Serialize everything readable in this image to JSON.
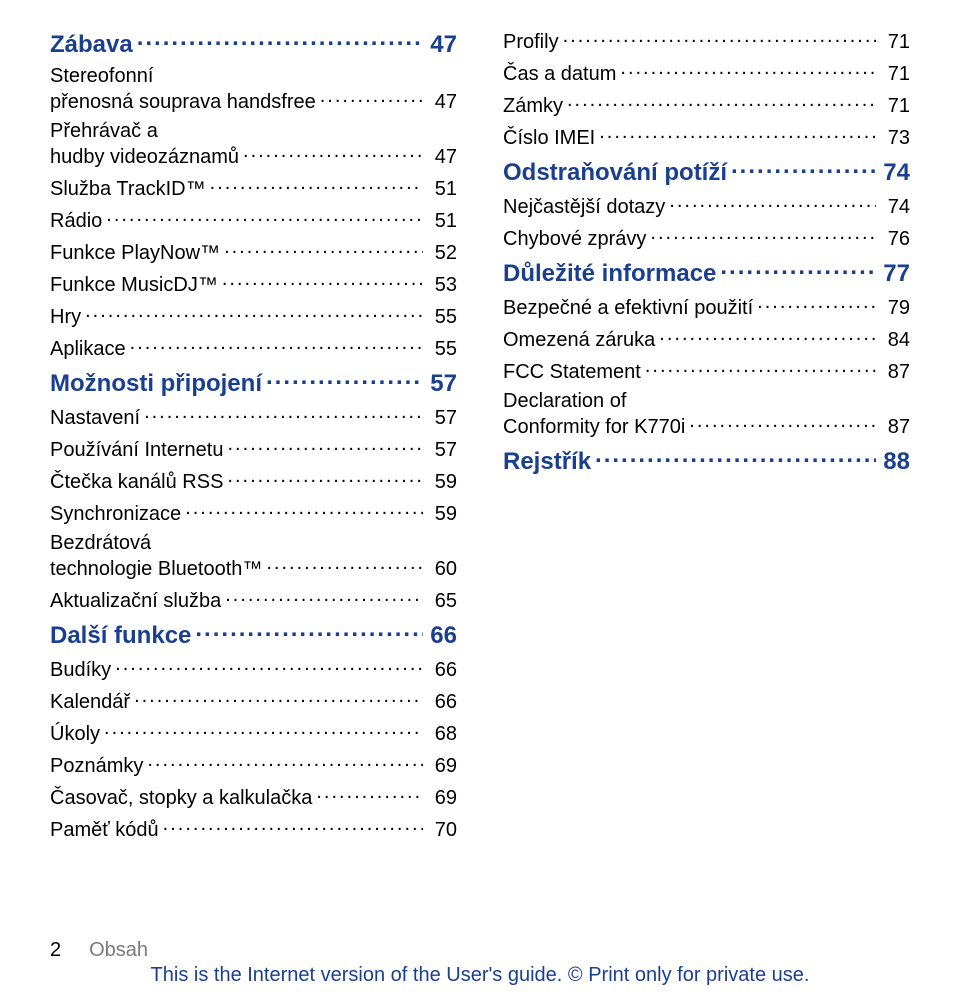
{
  "colors": {
    "heading": "#1b3f8f",
    "entry": "#000000",
    "footer_gray": "#7a7a7a",
    "footer_blue": "#1b3f8f"
  },
  "left": [
    {
      "type": "heading",
      "label": "Zábava",
      "page": "47"
    },
    {
      "type": "entry",
      "label": "Stereofonní přenosná souprava handsfree",
      "page": "47",
      "wrap": true
    },
    {
      "type": "entry",
      "label": "Přehrávač hudby a videozáznamů",
      "page": "47",
      "wrap": true
    },
    {
      "type": "entry",
      "label": "Služba TrackID™",
      "page": "51"
    },
    {
      "type": "entry",
      "label": "Rádio",
      "page": "51"
    },
    {
      "type": "entry",
      "label": "Funkce PlayNow™",
      "page": "52"
    },
    {
      "type": "entry",
      "label": "Funkce MusicDJ™",
      "page": "53"
    },
    {
      "type": "entry",
      "label": "Hry",
      "page": "55"
    },
    {
      "type": "entry",
      "label": "Aplikace",
      "page": "55"
    },
    {
      "type": "heading",
      "label": "Možnosti připojení",
      "page": "57"
    },
    {
      "type": "entry",
      "label": "Nastavení",
      "page": "57"
    },
    {
      "type": "entry",
      "label": "Používání Internetu",
      "page": "57"
    },
    {
      "type": "entry",
      "label": "Čtečka kanálů RSS",
      "page": "59"
    },
    {
      "type": "entry",
      "label": "Synchronizace",
      "page": "59"
    },
    {
      "type": "entry",
      "label": "Bezdrátová technologie Bluetooth™",
      "page": "60",
      "wrap": true
    },
    {
      "type": "entry",
      "label": "Aktualizační služba",
      "page": "65"
    },
    {
      "type": "heading",
      "label": "Další funkce",
      "page": "66"
    },
    {
      "type": "entry",
      "label": "Budíky",
      "page": "66"
    },
    {
      "type": "entry",
      "label": "Kalendář",
      "page": "66"
    },
    {
      "type": "entry",
      "label": "Úkoly",
      "page": "68"
    },
    {
      "type": "entry",
      "label": "Poznámky",
      "page": "69"
    },
    {
      "type": "entry",
      "label": "Časovač, stopky a kalkulačka",
      "page": "69"
    },
    {
      "type": "entry",
      "label": "Paměť kódů",
      "page": "70"
    }
  ],
  "right": [
    {
      "type": "entry",
      "label": "Profily",
      "page": "71"
    },
    {
      "type": "entry",
      "label": "Čas a datum",
      "page": "71"
    },
    {
      "type": "entry",
      "label": "Zámky",
      "page": "71"
    },
    {
      "type": "entry",
      "label": "Číslo IMEI",
      "page": "73"
    },
    {
      "type": "heading",
      "label": "Odstraňování potíží",
      "page": "74"
    },
    {
      "type": "entry",
      "label": "Nejčastější dotazy",
      "page": "74"
    },
    {
      "type": "entry",
      "label": "Chybové zprávy",
      "page": "76"
    },
    {
      "type": "heading",
      "label": "Důležité informace",
      "page": "77"
    },
    {
      "type": "entry",
      "label": "Bezpečné a efektivní použití",
      "page": "79"
    },
    {
      "type": "entry",
      "label": "Omezená záruka",
      "page": "84"
    },
    {
      "type": "entry",
      "label": "FCC Statement",
      "page": "87"
    },
    {
      "type": "entry",
      "label": "Declaration of Conformity for K770i",
      "page": "87",
      "wrap": true
    },
    {
      "type": "heading",
      "label": "Rejstřík",
      "page": "88"
    }
  ],
  "footer": {
    "page_number": "2",
    "section_label": "Obsah",
    "line_prefix": "This is the Internet version of the User's guide. ",
    "line_suffix": " Print only for private use.",
    "copyright_symbol": "©"
  }
}
